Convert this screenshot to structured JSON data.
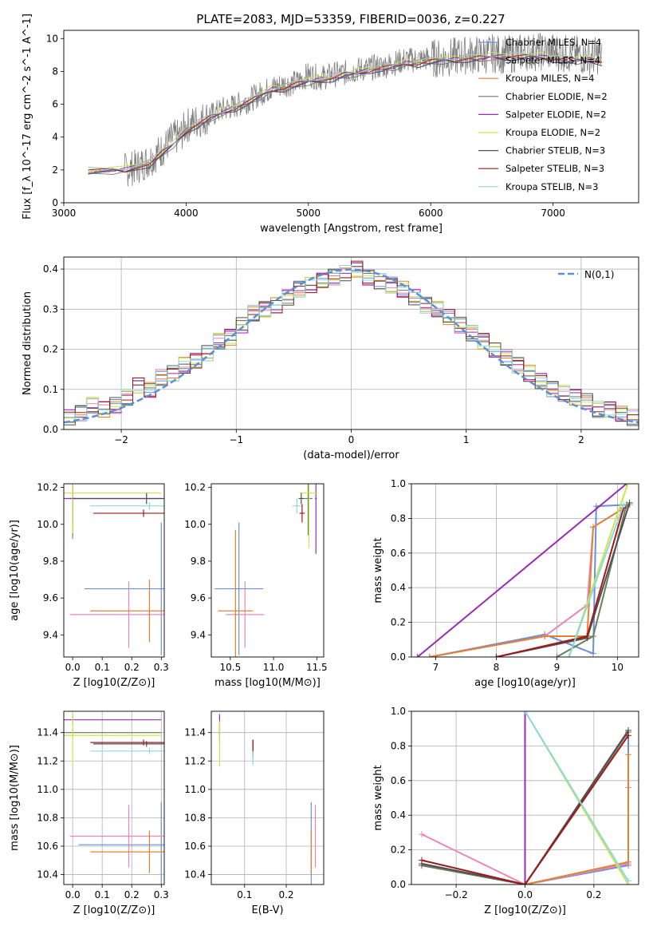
{
  "figure_title": "PLATE=2083, MJD=53359, FIBERID=0036, z=0.227",
  "series_names": [
    "Chabrier MILES",
    "Salpeter MILES",
    "Kroupa MILES",
    "Chabrier ELODIE",
    "Salpeter ELODIE",
    "Kroupa ELODIE",
    "Chabrier STELIB",
    "Salpeter STELIB",
    "Kroupa STELIB"
  ],
  "colors": {
    "Chabrier MILES": "#6a8fdc",
    "Salpeter MILES": "#e887b5",
    "Kroupa MILES": "#e08234",
    "Chabrier ELODIE": "#667f5f",
    "Salpeter ELODIE": "#9b2bb5",
    "Kroupa ELODIE": "#cfe34a",
    "Chabrier STELIB": "#505050",
    "Salpeter STELIB": "#a01818",
    "Kroupa STELIB": "#8cd8e0",
    "data": "#808080",
    "normal": "#5b8fd6"
  },
  "chart_data": [
    {
      "type": "line",
      "panel": "spectrum",
      "title": "PLATE=2083, MJD=53359, FIBERID=0036, z=0.227",
      "xlabel": "wavelength [Angstrom, rest frame]",
      "ylabel": "Flux [f_λ 10^-17 erg cm^-2 s^-1 A^-1]",
      "xlim": [
        3000,
        7700
      ],
      "ylim": [
        0,
        10.5
      ],
      "xticks": [
        3000,
        4000,
        5000,
        6000,
        7000
      ],
      "yticks": [
        0,
        2,
        4,
        6,
        8,
        10
      ],
      "legend_position": "upper right",
      "legend": [
        "Chabrier MILES, N_SSP=4",
        "Salpeter MILES, N_SSP=4",
        "Kroupa MILES, N_SSP=4",
        "Chabrier ELODIE, N_SSP=2",
        "Salpeter ELODIE, N_SSP=2",
        "Kroupa ELODIE, N_SSP=2",
        "Chabrier STELIB, N_SSP=3",
        "Salpeter STELIB, N_SSP=3",
        "Kroupa STELIB, N_SSP=3"
      ],
      "data_spectrum": {
        "x": [
          3200,
          3500,
          3600,
          3700,
          3800,
          3900,
          3950,
          4000,
          4100,
          4200,
          4300,
          4400,
          4500,
          4600,
          4700,
          4800,
          4900,
          5000,
          5100,
          5200,
          5300,
          5400,
          5500,
          5600,
          5700,
          5800,
          5900,
          6000,
          6100,
          6200,
          6300,
          6400,
          6500,
          6600,
          6700,
          6800,
          6900,
          7000,
          7100,
          7200,
          7300,
          7400
        ],
        "y": [
          1.9,
          2.0,
          2.2,
          2.6,
          3.2,
          4.0,
          4.0,
          4.7,
          5.0,
          5.3,
          5.7,
          5.9,
          6.2,
          6.6,
          7.0,
          7.2,
          7.3,
          7.8,
          7.6,
          7.8,
          7.9,
          8.1,
          8.2,
          8.3,
          8.5,
          8.7,
          8.7,
          8.8,
          8.8,
          8.9,
          9.0,
          9.0,
          9.1,
          9.0,
          9.1,
          9.2,
          9.2,
          9.2,
          9.1,
          9.0,
          8.9,
          9.0
        ]
      },
      "model_spectra": {
        "x": [
          3200,
          3400,
          3500,
          3700,
          3800,
          3900,
          4000,
          4100,
          4200,
          4300,
          4400,
          4500,
          4600,
          4700,
          4800,
          4900,
          5000,
          5100,
          5200,
          5300,
          5400,
          5500,
          5600,
          5700,
          5800,
          5900,
          6000,
          6100,
          6200,
          6300,
          6400,
          6500,
          6600,
          6700,
          6800,
          6900,
          7000,
          7100,
          7200,
          7300,
          7400
        ],
        "y": [
          1.9,
          2.0,
          2.0,
          2.4,
          3.0,
          3.6,
          4.4,
          4.8,
          5.2,
          5.5,
          5.8,
          6.1,
          6.5,
          6.9,
          7.0,
          7.2,
          7.4,
          7.5,
          7.6,
          7.8,
          7.9,
          8.1,
          8.2,
          8.3,
          8.5,
          8.5,
          8.6,
          8.7,
          8.7,
          8.8,
          8.8,
          8.9,
          8.9,
          8.9,
          8.9,
          8.9,
          8.8,
          8.7,
          8.7,
          8.7,
          8.6
        ]
      }
    },
    {
      "type": "line",
      "panel": "residuals",
      "xlabel": "(data-model)/error",
      "ylabel": "Normed distribution",
      "xlim": [
        -2.5,
        2.5
      ],
      "ylim": [
        0,
        0.43
      ],
      "xticks": [
        -2,
        -1,
        0,
        1,
        2
      ],
      "yticks": [
        0.0,
        0.1,
        0.2,
        0.3,
        0.4
      ],
      "grid": true,
      "legend_position": "upper right",
      "legend": [
        "N(0,1)"
      ],
      "normal": {
        "name": "N(0,1)",
        "mu": 0,
        "sigma": 1
      },
      "histogram": {
        "bin_centers": [
          -2.45,
          -2.35,
          -2.25,
          -2.15,
          -2.05,
          -1.95,
          -1.85,
          -1.75,
          -1.65,
          -1.55,
          -1.45,
          -1.35,
          -1.25,
          -1.15,
          -1.05,
          -0.95,
          -0.85,
          -0.75,
          -0.65,
          -0.55,
          -0.45,
          -0.35,
          -0.25,
          -0.15,
          -0.05,
          0.05,
          0.15,
          0.25,
          0.35,
          0.45,
          0.55,
          0.65,
          0.75,
          0.85,
          0.95,
          1.05,
          1.15,
          1.25,
          1.35,
          1.45,
          1.55,
          1.65,
          1.75,
          1.85,
          1.95,
          2.05,
          2.15,
          2.25,
          2.35,
          2.45
        ],
        "values": [
          0.03,
          0.04,
          0.06,
          0.05,
          0.06,
          0.08,
          0.11,
          0.1,
          0.13,
          0.14,
          0.16,
          0.17,
          0.19,
          0.22,
          0.23,
          0.26,
          0.29,
          0.3,
          0.31,
          0.33,
          0.35,
          0.36,
          0.37,
          0.38,
          0.39,
          0.4,
          0.38,
          0.37,
          0.36,
          0.35,
          0.33,
          0.31,
          0.3,
          0.28,
          0.26,
          0.24,
          0.22,
          0.2,
          0.18,
          0.16,
          0.14,
          0.12,
          0.1,
          0.09,
          0.08,
          0.07,
          0.05,
          0.05,
          0.04,
          0.03
        ]
      }
    },
    {
      "type": "scatter",
      "panel": "age_vs_Z",
      "xlabel": "Z [log10(Z/Z⊙)]",
      "ylabel": "age [log10(age/yr)]",
      "xlim": [
        -0.03,
        0.31
      ],
      "ylim": [
        9.28,
        10.22
      ],
      "xticks": [
        0.0,
        0.1,
        0.2,
        0.3
      ],
      "yticks": [
        9.4,
        9.6,
        9.8,
        10.0,
        10.2
      ],
      "points": [
        {
          "series": "Chabrier MILES",
          "x": 0.0,
          "y": 10.14,
          "xerr": 0.01,
          "yerr": 0.22
        },
        {
          "series": "Chabrier MILES",
          "x": 0.3,
          "y": 9.65,
          "xerr": 0.26,
          "yerr": 0.36
        },
        {
          "series": "Salpeter MILES",
          "x": 0.19,
          "y": 9.51,
          "xerr": 0.2,
          "yerr": 0.18
        },
        {
          "series": "Kroupa MILES",
          "x": 0.26,
          "y": 9.53,
          "xerr": 0.2,
          "yerr": 0.17
        },
        {
          "series": "Chabrier ELODIE",
          "x": 0.0,
          "y": 10.14,
          "xerr": 0.01,
          "yerr": 0.2
        },
        {
          "series": "Salpeter ELODIE",
          "x": 0.0,
          "y": 10.14,
          "xerr": 0.3,
          "yerr": 0.15
        },
        {
          "series": "Kroupa ELODIE",
          "x": 0.0,
          "y": 10.17,
          "xerr": 0.3,
          "yerr": 0.22
        },
        {
          "series": "Chabrier STELIB",
          "x": 0.25,
          "y": 10.14,
          "xerr": 0.25,
          "yerr": 0.03
        },
        {
          "series": "Salpeter STELIB",
          "x": 0.24,
          "y": 10.06,
          "xerr": 0.17,
          "yerr": 0.02
        },
        {
          "series": "Kroupa STELIB",
          "x": 0.26,
          "y": 10.1,
          "xerr": 0.2,
          "yerr": 0.02
        }
      ]
    },
    {
      "type": "scatter",
      "panel": "age_vs_mass",
      "xlabel": "mass [log10(M/M⊙)]",
      "ylabel": "",
      "xlim": [
        10.28,
        11.58
      ],
      "ylim": [
        9.28,
        10.22
      ],
      "xticks": [
        10.5,
        11.0,
        11.5
      ],
      "yticks": [
        9.4,
        9.6,
        9.8,
        10.0,
        10.2
      ],
      "points": [
        {
          "series": "Chabrier MILES",
          "x": 10.6,
          "y": 9.65,
          "xerr": 0.28,
          "yerr": 0.36
        },
        {
          "series": "Salpeter MILES",
          "x": 10.67,
          "y": 9.51,
          "xerr": 0.22,
          "yerr": 0.18
        },
        {
          "series": "Kroupa MILES",
          "x": 10.56,
          "y": 9.53,
          "xerr": 0.2,
          "yerr": 0.44
        },
        {
          "series": "Chabrier ELODIE",
          "x": 11.4,
          "y": 10.14,
          "xerr": 0.05,
          "yerr": 0.2
        },
        {
          "series": "Salpeter ELODIE",
          "x": 11.49,
          "y": 10.14,
          "xerr": 0.01,
          "yerr": 0.3
        },
        {
          "series": "Kroupa ELODIE",
          "x": 11.41,
          "y": 10.17,
          "xerr": 0.1,
          "yerr": 0.3
        },
        {
          "series": "Chabrier STELIB",
          "x": 11.32,
          "y": 10.14,
          "xerr": 0.03,
          "yerr": 0.03
        },
        {
          "series": "Salpeter STELIB",
          "x": 11.33,
          "y": 10.06,
          "xerr": 0.03,
          "yerr": 0.05
        },
        {
          "series": "Kroupa STELIB",
          "x": 11.27,
          "y": 10.1,
          "xerr": 0.05,
          "yerr": 0.04
        }
      ]
    },
    {
      "type": "line",
      "panel": "mass_weight_vs_age",
      "xlabel": "age [log10(age/yr)]",
      "ylabel": "mass weight",
      "xlim": [
        6.6,
        10.35
      ],
      "ylim": [
        0,
        1.0
      ],
      "xticks": [
        7,
        8,
        9,
        10
      ],
      "yticks": [
        0.0,
        0.2,
        0.4,
        0.6,
        0.8,
        1.0
      ],
      "grid": true,
      "series": [
        {
          "name": "Chabrier MILES",
          "x": [
            6.9,
            8.8,
            9.6,
            9.65,
            10.2
          ],
          "y": [
            0.0,
            0.13,
            0.02,
            0.87,
            0.88
          ]
        },
        {
          "name": "Salpeter MILES",
          "x": [
            6.9,
            8.8,
            9.5,
            9.6,
            10.2
          ],
          "y": [
            0.0,
            0.12,
            0.3,
            0.75,
            0.88
          ]
        },
        {
          "name": "Kroupa MILES",
          "x": [
            6.9,
            8.8,
            9.5,
            9.6,
            10.2
          ],
          "y": [
            0.0,
            0.12,
            0.12,
            0.75,
            0.88
          ]
        },
        {
          "name": "Chabrier ELODIE",
          "x": [
            9.0,
            9.6,
            10.15
          ],
          "y": [
            0.0,
            0.12,
            0.88
          ]
        },
        {
          "name": "Salpeter ELODIE",
          "x": [
            6.7,
            10.15
          ],
          "y": [
            0.0,
            1.0
          ]
        },
        {
          "name": "Kroupa ELODIE",
          "x": [
            9.2,
            10.17
          ],
          "y": [
            0.0,
            1.0
          ]
        },
        {
          "name": "Chabrier STELIB",
          "x": [
            8.0,
            9.5,
            10.2
          ],
          "y": [
            0.0,
            0.11,
            0.89
          ]
        },
        {
          "name": "Salpeter STELIB",
          "x": [
            8.0,
            9.5,
            10.1
          ],
          "y": [
            0.0,
            0.12,
            0.86
          ]
        },
        {
          "name": "Kroupa STELIB",
          "x": [
            9.2,
            10.1
          ],
          "y": [
            0.0,
            0.88
          ]
        }
      ]
    },
    {
      "type": "scatter",
      "panel": "mass_vs_Z",
      "xlabel": "Z [log10(Z/Z⊙)]",
      "ylabel": "mass [log10(M/M⊙)]",
      "xlim": [
        -0.03,
        0.31
      ],
      "ylim": [
        10.33,
        11.55
      ],
      "xticks": [
        0.0,
        0.1,
        0.2,
        0.3
      ],
      "yticks": [
        10.4,
        10.6,
        10.8,
        11.0,
        11.2,
        11.4
      ],
      "grid": true,
      "points": [
        {
          "series": "Chabrier MILES",
          "x": 0.3,
          "y": 10.61,
          "xerr": 0.28,
          "yerr": 0.3
        },
        {
          "series": "Salpeter MILES",
          "x": 0.19,
          "y": 10.67,
          "xerr": 0.2,
          "yerr": 0.22
        },
        {
          "series": "Kroupa MILES",
          "x": 0.26,
          "y": 10.56,
          "xerr": 0.2,
          "yerr": 0.15
        },
        {
          "series": "Chabrier ELODIE",
          "x": 0.0,
          "y": 11.4,
          "xerr": 0.3,
          "yerr": 0.03
        },
        {
          "series": "Salpeter ELODIE",
          "x": 0.0,
          "y": 11.49,
          "xerr": 0.3,
          "yerr": 0.03
        },
        {
          "series": "Kroupa ELODIE",
          "x": 0.0,
          "y": 11.38,
          "xerr": 0.3,
          "yerr": 0.2
        },
        {
          "series": "Chabrier STELIB",
          "x": 0.25,
          "y": 11.32,
          "xerr": 0.18,
          "yerr": 0.02
        },
        {
          "series": "Salpeter STELIB",
          "x": 0.24,
          "y": 11.33,
          "xerr": 0.18,
          "yerr": 0.02
        },
        {
          "series": "Kroupa STELIB",
          "x": 0.26,
          "y": 11.27,
          "xerr": 0.2,
          "yerr": 0.02
        }
      ]
    },
    {
      "type": "scatter",
      "panel": "mass_vs_EBV",
      "xlabel": "E(B-V)",
      "ylabel": "",
      "xlim": [
        0.02,
        0.29
      ],
      "ylim": [
        10.33,
        11.55
      ],
      "xticks": [
        0.1,
        0.2
      ],
      "yticks": [
        10.4,
        10.6,
        10.8,
        11.0,
        11.2,
        11.4
      ],
      "grid": true,
      "points": [
        {
          "series": "Chabrier MILES",
          "x": 0.26,
          "y": 10.61,
          "xerr": 0.0,
          "yerr": 0.3
        },
        {
          "series": "Salpeter MILES",
          "x": 0.27,
          "y": 10.67,
          "xerr": 0.0,
          "yerr": 0.22
        },
        {
          "series": "Kroupa MILES",
          "x": 0.26,
          "y": 10.56,
          "xerr": 0.0,
          "yerr": 0.15
        },
        {
          "series": "Chabrier ELODIE",
          "x": 0.04,
          "y": 11.4,
          "xerr": 0.0,
          "yerr": 0.03
        },
        {
          "series": "Salpeter ELODIE",
          "x": 0.04,
          "y": 11.43,
          "xerr": 0.0,
          "yerr": 0.1
        },
        {
          "series": "Kroupa ELODIE",
          "x": 0.04,
          "y": 11.32,
          "xerr": 0.0,
          "yerr": 0.16
        },
        {
          "series": "Chabrier STELIB",
          "x": 0.12,
          "y": 11.3,
          "xerr": 0.0,
          "yerr": 0.05
        },
        {
          "series": "Salpeter STELIB",
          "x": 0.12,
          "y": 11.29,
          "xerr": 0.0,
          "yerr": 0.06
        },
        {
          "series": "Kroupa STELIB",
          "x": 0.12,
          "y": 11.22,
          "xerr": 0.0,
          "yerr": 0.05
        }
      ]
    },
    {
      "type": "line",
      "panel": "mass_weight_vs_Z",
      "xlabel": "Z [log10(Z/Z⊙)]",
      "ylabel": "mass weight",
      "xlim": [
        -0.33,
        0.33
      ],
      "ylim": [
        0,
        1.0
      ],
      "xticks": [
        -0.2,
        0.0,
        0.2
      ],
      "yticks": [
        0.0,
        0.2,
        0.4,
        0.6,
        0.8,
        1.0
      ],
      "grid": true,
      "series": [
        {
          "name": "Chabrier MILES",
          "x": [
            -0.3,
            0.0,
            0.3,
            0.3
          ],
          "y": [
            0.12,
            0.0,
            0.11,
            0.88
          ]
        },
        {
          "name": "Salpeter MILES",
          "x": [
            -0.3,
            0.0,
            0.3,
            0.3
          ],
          "y": [
            0.29,
            0.0,
            0.12,
            0.56
          ]
        },
        {
          "name": "Kroupa MILES",
          "x": [
            -0.3,
            0.0,
            0.3,
            0.3
          ],
          "y": [
            0.11,
            0.0,
            0.13,
            0.75
          ]
        },
        {
          "name": "Chabrier ELODIE",
          "x": [
            -0.3,
            0.0,
            0.3
          ],
          "y": [
            0.11,
            0.0,
            0.88
          ]
        },
        {
          "name": "Salpeter ELODIE",
          "x": [
            0.0,
            0.0
          ],
          "y": [
            0.0,
            1.0
          ]
        },
        {
          "name": "Kroupa ELODIE",
          "x": [
            0.0,
            0.3
          ],
          "y": [
            1.0,
            0.0
          ]
        },
        {
          "name": "Chabrier STELIB",
          "x": [
            -0.3,
            0.0,
            0.3
          ],
          "y": [
            0.12,
            0.0,
            0.89
          ]
        },
        {
          "name": "Salpeter STELIB",
          "x": [
            -0.3,
            0.0,
            0.3
          ],
          "y": [
            0.14,
            0.0,
            0.86
          ]
        },
        {
          "name": "Kroupa STELIB",
          "x": [
            0.0,
            0.3
          ],
          "y": [
            1.0,
            0.02
          ]
        }
      ]
    }
  ]
}
